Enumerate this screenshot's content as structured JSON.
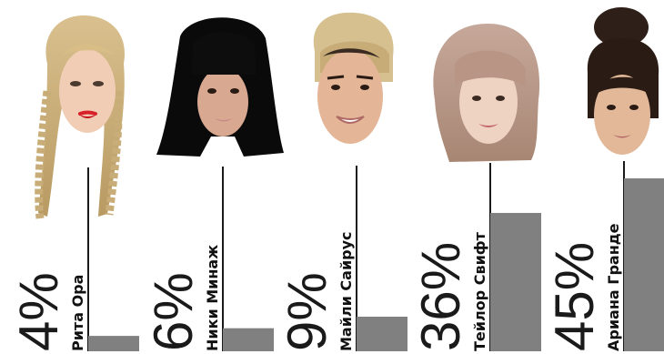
{
  "chart_data": {
    "type": "bar",
    "orientation": "vertical",
    "categories": [
      "Рита Ора",
      "Ники Минаж",
      "Майли Сайрус",
      "Тейлор Свифт",
      "Ариана Гранде"
    ],
    "values": [
      4,
      6,
      9,
      36,
      45
    ],
    "value_labels": [
      "4%",
      "6%",
      "9%",
      "36%",
      "45%"
    ],
    "unit": "%",
    "bar_color": "#808080",
    "axis_color": "#1a1a1a",
    "category_images": [
      "portrait-rita-ora",
      "portrait-nicki-minaj",
      "portrait-miley-cyrus",
      "portrait-taylor-swift",
      "portrait-ariana-grande"
    ],
    "title": "",
    "xlabel": "",
    "ylabel": "",
    "grid": false,
    "legend": "none"
  }
}
